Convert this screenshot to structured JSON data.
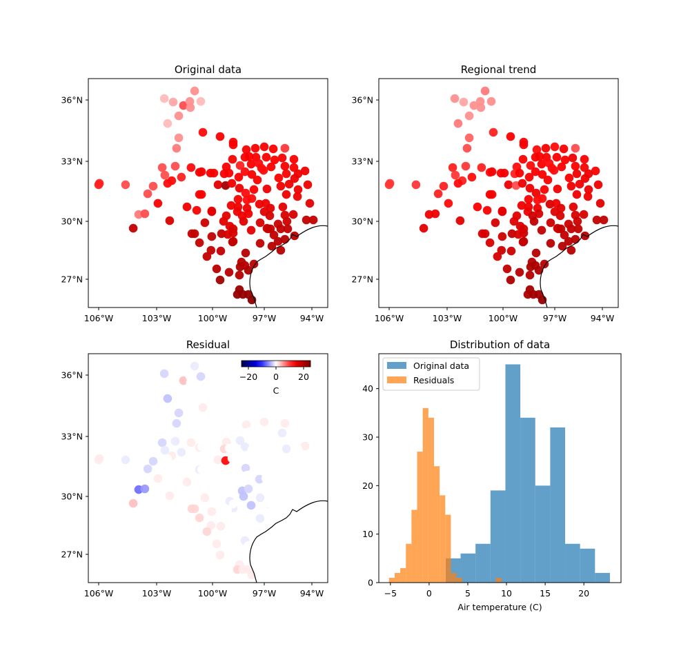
{
  "stations_columns": [
    "lon",
    "lat",
    "air_temperature_C",
    "residual_C"
  ],
  "stations": [
    [
      -100.96,
      36.44,
      5,
      -1
    ],
    [
      -102.59,
      36.07,
      3,
      -2
    ],
    [
      -102.11,
      35.9,
      4,
      0
    ],
    [
      -101.56,
      35.73,
      8,
      3
    ],
    [
      -101.22,
      35.93,
      5,
      0
    ],
    [
      -101.19,
      35.63,
      5,
      0
    ],
    [
      -100.63,
      35.93,
      3,
      -2
    ],
    [
      -101.81,
      35.22,
      5,
      0
    ],
    [
      -102.41,
      34.85,
      3,
      -3
    ],
    [
      -101.81,
      34.15,
      5,
      -2
    ],
    [
      -101.93,
      33.64,
      6,
      -2
    ],
    [
      -100.52,
      34.42,
      11,
      1
    ],
    [
      -99.56,
      34.21,
      12,
      0
    ],
    [
      -102.7,
      32.69,
      8,
      -2
    ],
    [
      -102.0,
      32.76,
      8,
      -1
    ],
    [
      -101.15,
      32.69,
      11,
      1
    ],
    [
      -102.56,
      32.31,
      8,
      -1
    ],
    [
      -102.19,
      32.03,
      11,
      1
    ],
    [
      -101.67,
      32.21,
      10,
      -1
    ],
    [
      -102.41,
      31.9,
      11,
      0
    ],
    [
      -100.7,
      32.45,
      12,
      1
    ],
    [
      -100.11,
      32.41,
      12,
      0
    ],
    [
      -99.92,
      32.41,
      12,
      0
    ],
    [
      -106.0,
      31.83,
      10,
      1
    ],
    [
      -105.96,
      31.9,
      10,
      1
    ],
    [
      -104.61,
      31.83,
      8,
      -1
    ],
    [
      -103.18,
      31.76,
      8,
      -2
    ],
    [
      -103.46,
      31.38,
      8,
      -2
    ],
    [
      -102.93,
      30.9,
      12,
      1
    ],
    [
      -103.93,
      30.34,
      6,
      -7
    ],
    [
      -103.61,
      30.38,
      8,
      -5
    ],
    [
      -102.3,
      30.03,
      15,
      1
    ],
    [
      -104.21,
      29.64,
      17,
      3
    ],
    [
      -100.7,
      31.34,
      12,
      -1
    ],
    [
      -101.37,
      30.72,
      13,
      1
    ],
    [
      -100.85,
      30.55,
      12,
      0
    ],
    [
      -100.04,
      30.52,
      13,
      0
    ],
    [
      -100.41,
      29.93,
      16,
      1
    ],
    [
      -99.68,
      31.83,
      14,
      1
    ],
    [
      -99.24,
      31.79,
      20,
      12
    ],
    [
      -101.11,
      29.36,
      17,
      2
    ],
    [
      -100.96,
      29.36,
      17,
      2
    ],
    [
      -100.04,
      29.21,
      17,
      1
    ],
    [
      -99.48,
      29.36,
      17,
      0
    ],
    [
      -100.7,
      28.89,
      17,
      2
    ],
    [
      -99.36,
      30.0,
      14,
      0
    ],
    [
      -99.0,
      29.75,
      14,
      -1
    ],
    [
      -98.8,
      29.39,
      15,
      -1
    ],
    [
      -99.12,
      29.32,
      15,
      0
    ],
    [
      -97.76,
      29.54,
      14,
      -3
    ],
    [
      -97.24,
      29.93,
      15,
      -1
    ],
    [
      -96.78,
      29.61,
      17,
      1
    ],
    [
      -98.84,
      28.93,
      17,
      0
    ],
    [
      -100.08,
      28.5,
      17,
      1
    ],
    [
      -100.3,
      28.18,
      17,
      2
    ],
    [
      -99.52,
      28.46,
      17,
      1
    ],
    [
      -98.08,
      28.36,
      18,
      0
    ],
    [
      -97.24,
      28.86,
      17,
      -1
    ],
    [
      -98.32,
      27.89,
      18,
      0
    ],
    [
      -98.4,
      27.64,
      19,
      0
    ],
    [
      -98.12,
      27.71,
      18,
      -1
    ],
    [
      -99.76,
      27.54,
      18,
      1
    ],
    [
      -99.04,
      27.36,
      18,
      0
    ],
    [
      -98.44,
      27.21,
      18,
      0
    ],
    [
      -97.92,
      27.46,
      19,
      0
    ],
    [
      -97.6,
      27.79,
      18,
      0
    ],
    [
      -99.56,
      26.96,
      20,
      1
    ],
    [
      -98.44,
      26.46,
      21,
      1
    ],
    [
      -98.56,
      26.21,
      21,
      2
    ],
    [
      -98.24,
      26.21,
      21,
      1
    ],
    [
      -97.92,
      26.21,
      21,
      1
    ],
    [
      -97.72,
      25.93,
      22,
      1
    ],
    [
      -98.8,
      33.94,
      12,
      0
    ],
    [
      -98.8,
      33.81,
      12,
      0
    ],
    [
      -98.04,
      33.57,
      12,
      1
    ],
    [
      -97.52,
      33.64,
      12,
      0
    ],
    [
      -97.0,
      33.71,
      12,
      1
    ],
    [
      -96.43,
      33.61,
      12,
      0
    ],
    [
      -95.7,
      33.64,
      9,
      1
    ],
    [
      -98.84,
      33.1,
      12,
      0
    ],
    [
      -98.12,
      33.2,
      12,
      0
    ],
    [
      -97.88,
      33.24,
      12,
      0
    ],
    [
      -97.48,
      33.2,
      12,
      0
    ],
    [
      -96.87,
      33.2,
      12,
      0
    ],
    [
      -96.35,
      33.07,
      12,
      0
    ],
    [
      -95.87,
      33.17,
      12,
      -1
    ],
    [
      -95.13,
      33.1,
      12,
      0
    ],
    [
      -99.2,
      32.72,
      12,
      1
    ],
    [
      -98.4,
      32.79,
      10,
      -1
    ],
    [
      -97.76,
      32.86,
      12,
      0
    ],
    [
      -97.32,
      32.9,
      11,
      0
    ],
    [
      -97.16,
      32.66,
      11,
      0
    ],
    [
      -96.57,
      32.72,
      12,
      0
    ],
    [
      -95.7,
      32.76,
      12,
      0
    ],
    [
      -95.13,
      32.69,
      12,
      0
    ],
    [
      -94.43,
      32.52,
      13,
      1
    ],
    [
      -100.59,
      32.48,
      12,
      0
    ],
    [
      -99.32,
      32.38,
      12,
      2
    ],
    [
      -99.04,
      32.41,
      12,
      0
    ],
    [
      -98.12,
      32.48,
      11,
      -1
    ],
    [
      -97.72,
      32.34,
      12,
      0
    ],
    [
      -97.04,
      32.55,
      11,
      0
    ],
    [
      -95.61,
      32.38,
      12,
      -1
    ],
    [
      -94.87,
      32.38,
      13,
      0
    ],
    [
      -98.48,
      32.21,
      12,
      0
    ],
    [
      -97.4,
      32.07,
      12,
      0
    ],
    [
      -96.09,
      32.17,
      12,
      0
    ],
    [
      -95.09,
      32.14,
      13,
      0
    ],
    [
      -98.88,
      31.9,
      13,
      0
    ],
    [
      -98.44,
      31.66,
      13,
      0
    ],
    [
      -97.6,
      31.59,
      12,
      0
    ],
    [
      -96.83,
      31.62,
      13,
      0
    ],
    [
      -95.96,
      31.76,
      13,
      0
    ],
    [
      -95.43,
      31.86,
      13,
      0
    ],
    [
      -94.87,
      31.59,
      13,
      0
    ],
    [
      -94.26,
      31.83,
      13,
      0
    ],
    [
      -100.59,
      31.34,
      12,
      0
    ],
    [
      -98.52,
      31.1,
      12,
      0
    ],
    [
      -98.08,
      31.41,
      11,
      -2
    ],
    [
      -98.0,
      31.07,
      11,
      0
    ],
    [
      -97.72,
      31.14,
      11,
      0
    ],
    [
      -95.61,
      31.34,
      13,
      0
    ],
    [
      -94.91,
      31.24,
      13,
      0
    ],
    [
      -94.13,
      30.9,
      14,
      0
    ],
    [
      -98.92,
      30.79,
      13,
      0
    ],
    [
      -100.04,
      30.48,
      14,
      0
    ],
    [
      -98.52,
      30.72,
      13,
      0
    ],
    [
      -97.28,
      30.86,
      13,
      -2
    ],
    [
      -96.91,
      30.9,
      13,
      0
    ],
    [
      -96.61,
      30.66,
      14,
      0
    ],
    [
      -95.83,
      30.72,
      14,
      0
    ],
    [
      -98.56,
      30.48,
      13,
      0
    ],
    [
      -98.0,
      30.66,
      13,
      0
    ],
    [
      -97.0,
      30.48,
      14,
      0
    ],
    [
      -98.28,
      30.28,
      13,
      -3
    ],
    [
      -97.92,
      30.38,
      13,
      -2
    ],
    [
      -99.2,
      30.28,
      14,
      0
    ],
    [
      -96.65,
      30.28,
      15,
      0
    ],
    [
      -95.7,
      30.31,
      15,
      0
    ],
    [
      -95.17,
      30.34,
      15,
      0
    ],
    [
      -98.2,
      30.0,
      14,
      -3
    ],
    [
      -96.13,
      29.86,
      16,
      0
    ],
    [
      -95.57,
      30.0,
      16,
      0
    ],
    [
      -94.35,
      30.07,
      17,
      0
    ],
    [
      -93.91,
      30.07,
      17,
      0
    ],
    [
      -98.8,
      29.61,
      15,
      0
    ],
    [
      -96.83,
      29.64,
      16,
      0
    ],
    [
      -96.61,
      29.61,
      17,
      0
    ],
    [
      -95.96,
      29.61,
      17,
      0
    ],
    [
      -95.52,
      29.61,
      17,
      0
    ],
    [
      -96.39,
      29.29,
      17,
      0
    ],
    [
      -95.09,
      29.25,
      18,
      0
    ],
    [
      -98.8,
      28.96,
      17,
      0
    ],
    [
      -96.13,
      28.96,
      18,
      0
    ],
    [
      -95.7,
      29.07,
      18,
      0
    ],
    [
      -96.52,
      28.71,
      18,
      0
    ],
    [
      -95.96,
      28.5,
      18,
      0
    ]
  ],
  "chart_data": [
    {
      "type": "scatter",
      "title": "Original data",
      "value_field": "air_temperature_C",
      "colormap": "seismic",
      "color_range": [
        -23,
        23
      ],
      "x_tick_labels": [
        "106°W",
        "103°W",
        "100°W",
        "97°W",
        "94°W"
      ],
      "x_tick_values": [
        -106,
        -103,
        -100,
        -97,
        -94
      ],
      "y_tick_labels": [
        "36°N",
        "33°N",
        "30°N",
        "27°N"
      ],
      "y_tick_values": [
        36,
        33,
        30,
        27
      ],
      "coastline": true
    },
    {
      "type": "scatter",
      "title": "Regional trend",
      "value_field": "trend",
      "colormap": "seismic",
      "color_range": [
        -23,
        23
      ],
      "x_tick_labels": [
        "106°W",
        "103°W",
        "100°W",
        "97°W",
        "94°W"
      ],
      "x_tick_values": [
        -106,
        -103,
        -100,
        -97,
        -94
      ],
      "y_tick_labels": [
        "36°N",
        "33°N",
        "30°N",
        "27°N"
      ],
      "y_tick_values": [
        36,
        33,
        30,
        27
      ],
      "coastline": true
    },
    {
      "type": "scatter",
      "title": "Residual",
      "value_field": "residual_C",
      "colormap": "seismic",
      "color_range": [
        -25,
        25
      ],
      "x_tick_labels": [
        "106°W",
        "103°W",
        "100°W",
        "97°W",
        "94°W"
      ],
      "x_tick_values": [
        -106,
        -103,
        -100,
        -97,
        -94
      ],
      "y_tick_labels": [
        "36°N",
        "33°N",
        "30°N",
        "27°N"
      ],
      "y_tick_values": [
        36,
        33,
        30,
        27
      ],
      "coastline": true,
      "colorbar": {
        "tick_labels": [
          "−20",
          "0",
          "20"
        ],
        "tick_values": [
          -20,
          0,
          20
        ],
        "label": "C",
        "placement": "top-right",
        "orientation": "horizontal"
      }
    },
    {
      "type": "bar",
      "title": "Distribution of data",
      "xlabel": "Air temperature (C)",
      "ylabel": "",
      "xlim": [
        -6.5,
        24.8
      ],
      "ylim": [
        0,
        47.2
      ],
      "x_tick_values": [
        -5,
        0,
        5,
        10,
        15,
        20
      ],
      "x_tick_labels": [
        "−5",
        "0",
        "5",
        "10",
        "15",
        "20"
      ],
      "y_tick_values": [
        0,
        10,
        20,
        30,
        40
      ],
      "y_tick_labels": [
        "0",
        "10",
        "20",
        "30",
        "40"
      ],
      "legend_placement": "top-left",
      "series": [
        {
          "name": "Original data",
          "color": "#1f77b4",
          "alpha": 0.7,
          "bin_start": 2.14,
          "bin_width": 1.93,
          "counts": [
            5,
            6,
            8,
            19,
            45,
            34,
            20,
            32,
            8,
            7,
            2
          ]
        },
        {
          "name": "Residuals",
          "color": "#ff7f0e",
          "alpha": 0.7,
          "bin_start": -5.18,
          "bin_width": 0.7265,
          "counts": [
            1,
            2,
            3,
            8,
            15,
            27,
            36,
            34,
            24,
            18,
            14,
            2,
            1,
            0,
            0,
            0,
            0,
            0,
            0,
            1
          ]
        }
      ]
    }
  ]
}
